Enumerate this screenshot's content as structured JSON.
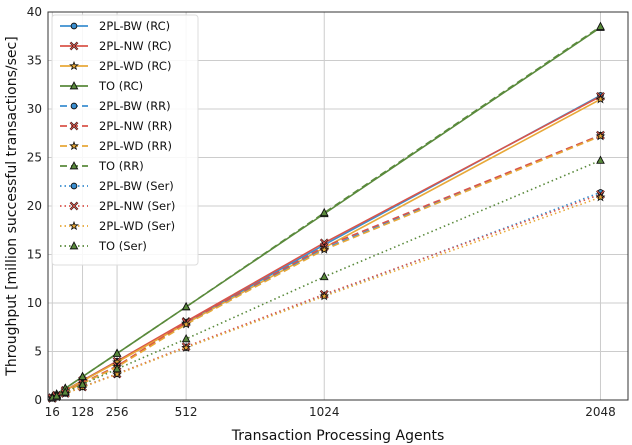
{
  "chart_data": {
    "type": "line",
    "xlabel": "Transaction Processing Agents",
    "ylabel": "Throughput [million successful transactions/sec]",
    "x": [
      16,
      32,
      64,
      128,
      256,
      512,
      1024,
      2048
    ],
    "xticks": [
      16,
      128,
      256,
      512,
      1024,
      2048
    ],
    "xlim": [
      0,
      2150
    ],
    "ylim": [
      0,
      40
    ],
    "yticks": [
      0,
      5,
      10,
      15,
      20,
      25,
      30,
      35,
      40
    ],
    "grid": true,
    "legend_position": "top-left",
    "series": [
      {
        "name": "2PL-BW (RC)",
        "color": "#3b8fd0",
        "dash": "solid",
        "marker": "circle",
        "values": [
          0.25,
          0.5,
          1.0,
          2.0,
          4.0,
          8.0,
          16.0,
          31.4
        ]
      },
      {
        "name": "2PL-NW (RC)",
        "color": "#d9544a",
        "dash": "solid",
        "marker": "x",
        "values": [
          0.25,
          0.5,
          1.0,
          2.0,
          4.0,
          8.1,
          16.2,
          31.3
        ]
      },
      {
        "name": "2PL-WD (RC)",
        "color": "#e8a838",
        "dash": "solid",
        "marker": "star",
        "values": [
          0.24,
          0.48,
          0.98,
          1.95,
          3.9,
          7.9,
          15.7,
          31.0
        ]
      },
      {
        "name": "TO (RC)",
        "color": "#5a8a3c",
        "dash": "solid",
        "marker": "triangle",
        "values": [
          0.3,
          0.6,
          1.2,
          2.4,
          4.8,
          9.6,
          19.2,
          38.4
        ]
      },
      {
        "name": "2PL-BW (RR)",
        "color": "#3b8fd0",
        "dash": "dashed",
        "marker": "circle",
        "values": [
          0.22,
          0.44,
          0.88,
          1.75,
          3.5,
          7.9,
          15.6,
          27.3
        ]
      },
      {
        "name": "2PL-NW (RR)",
        "color": "#d9544a",
        "dash": "dashed",
        "marker": "x",
        "values": [
          0.22,
          0.44,
          0.88,
          1.75,
          3.5,
          8.0,
          15.8,
          27.3
        ]
      },
      {
        "name": "2PL-WD (RR)",
        "color": "#e8a838",
        "dash": "dashed",
        "marker": "star",
        "values": [
          0.21,
          0.42,
          0.85,
          1.7,
          3.4,
          7.8,
          15.5,
          27.2
        ]
      },
      {
        "name": "TO (RR)",
        "color": "#5a8a3c",
        "dash": "dashed",
        "marker": "triangle",
        "values": [
          0.3,
          0.6,
          1.2,
          2.4,
          4.8,
          9.6,
          19.3,
          38.5
        ]
      },
      {
        "name": "2PL-BW (Ser)",
        "color": "#3b8fd0",
        "dash": "dotted",
        "marker": "circle",
        "values": [
          0.17,
          0.34,
          0.68,
          1.35,
          2.7,
          5.4,
          10.8,
          21.4
        ]
      },
      {
        "name": "2PL-NW (Ser)",
        "color": "#d9544a",
        "dash": "dotted",
        "marker": "x",
        "values": [
          0.17,
          0.34,
          0.68,
          1.35,
          2.7,
          5.5,
          10.9,
          21.2
        ]
      },
      {
        "name": "2PL-WD (Ser)",
        "color": "#e8a838",
        "dash": "dotted",
        "marker": "star",
        "values": [
          0.17,
          0.33,
          0.66,
          1.32,
          2.65,
          5.4,
          10.7,
          20.9
        ]
      },
      {
        "name": "TO (Ser)",
        "color": "#5a8a3c",
        "dash": "dotted",
        "marker": "triangle",
        "values": [
          0.2,
          0.4,
          0.8,
          1.6,
          3.2,
          6.3,
          12.7,
          24.7
        ]
      }
    ]
  }
}
